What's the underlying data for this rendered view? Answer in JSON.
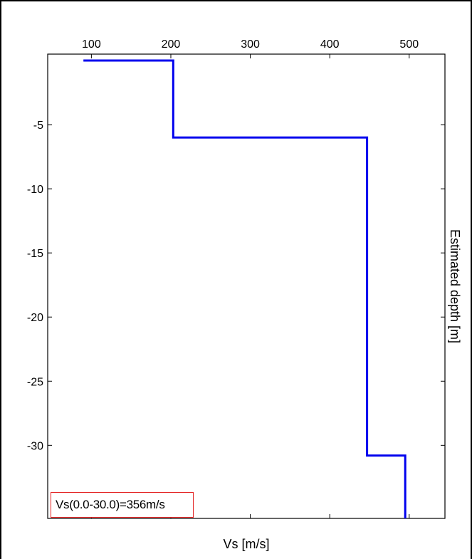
{
  "chart_data": {
    "type": "line",
    "xlabel": "Vs [m/s]",
    "ylabel": "Estimated depth [m]",
    "xaxis_position": "top",
    "ylabel_position": "right",
    "xlim": [
      45,
      545
    ],
    "ylim": [
      -35.7,
      0.5
    ],
    "xticks": [
      100,
      200,
      300,
      400,
      500
    ],
    "yticks": [
      -5,
      -10,
      -15,
      -20,
      -25,
      -30
    ],
    "grid": false,
    "series": [
      {
        "color": "#0000ee",
        "x": [
          90,
          203,
          203,
          447,
          447,
          495,
          495
        ],
        "y": [
          0,
          0,
          -6,
          -6,
          -30.8,
          -30.8,
          -35.7
        ]
      }
    ],
    "annotation": {
      "text": "Vs(0.0-30.0)=356m/s",
      "position": "bottom-left",
      "border_color": "#e32222"
    }
  }
}
